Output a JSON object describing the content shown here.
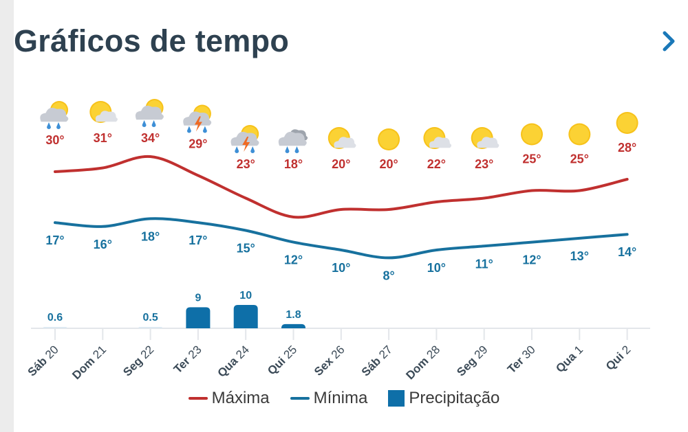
{
  "header": {
    "title": "Gráficos de tempo",
    "next_icon": "chevron-right-icon"
  },
  "colors": {
    "max": "#c0302f",
    "min": "#17719e",
    "precip": "#0e6fa8",
    "title": "#2e4150"
  },
  "legend": [
    {
      "label": "Máxima",
      "type": "line",
      "color": "#c0302f"
    },
    {
      "label": "Mínima",
      "type": "line",
      "color": "#17719e"
    },
    {
      "label": "Precipitação",
      "type": "box",
      "color": "#0e6fa8"
    }
  ],
  "chart_data": {
    "type": "line",
    "categories": [
      "Sáb 20",
      "Dom 21",
      "Seg 22",
      "Ter 23",
      "Qua 24",
      "Qui 25",
      "Sex 26",
      "Sáb 27",
      "Dom 28",
      "Seg 29",
      "Ter 30",
      "Qua 1",
      "Qui 2"
    ],
    "icons": [
      "partly-cloudy-rain",
      "partly-cloudy",
      "partly-cloudy-rain",
      "thunderstorm",
      "thunderstorm",
      "rain",
      "partly-cloudy",
      "sunny",
      "partly-cloudy",
      "partly-cloudy",
      "sunny",
      "sunny",
      "sunny"
    ],
    "series": [
      {
        "name": "Máxima",
        "unit": "°",
        "values": [
          30,
          31,
          34,
          29,
          23,
          18,
          20,
          20,
          22,
          23,
          25,
          25,
          28
        ]
      },
      {
        "name": "Mínima",
        "unit": "°",
        "values": [
          17,
          16,
          18,
          17,
          15,
          12,
          10,
          8,
          10,
          11,
          12,
          13,
          14
        ]
      },
      {
        "name": "Precipitação",
        "type": "bar",
        "values": [
          0.6,
          null,
          0.5,
          9,
          10,
          1.8,
          null,
          null,
          null,
          null,
          null,
          null,
          null
        ]
      }
    ]
  }
}
